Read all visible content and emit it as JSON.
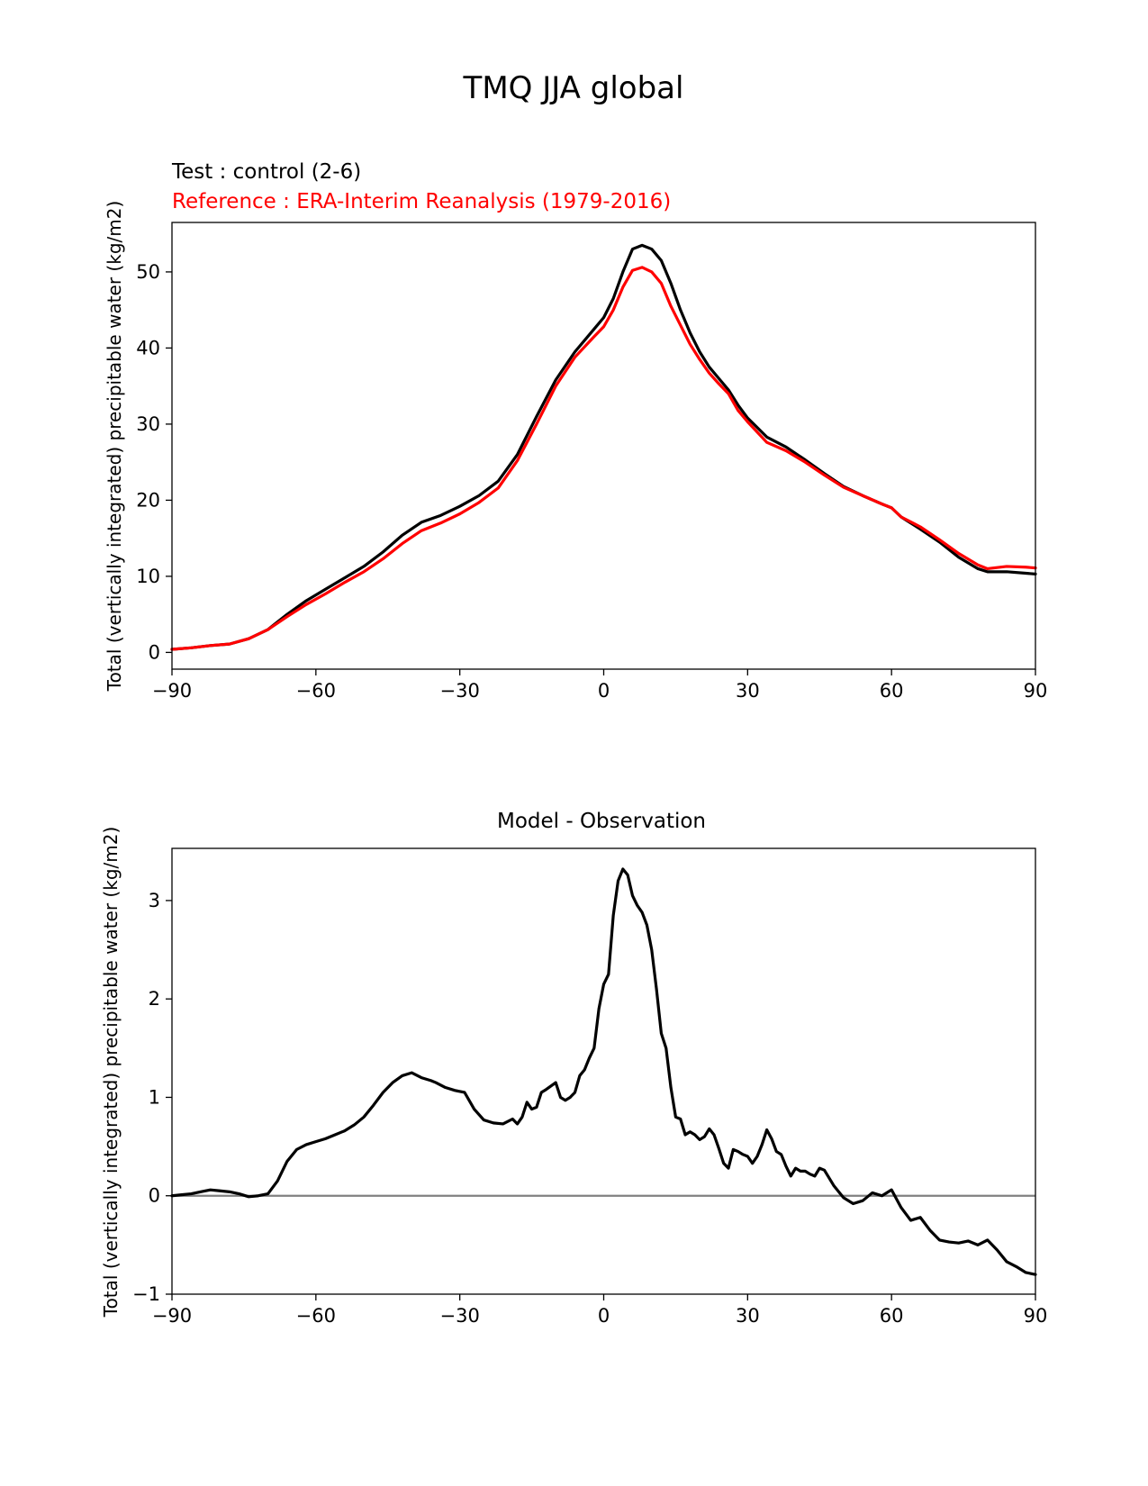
{
  "figure": {
    "title": "TMQ JJA global"
  },
  "chart_data": [
    {
      "type": "line",
      "test_label": "Test : control (2-6)",
      "reference_label": "Reference : ERA-Interim Reanalysis (1979-2016)",
      "title": "",
      "xlabel": "",
      "ylabel": "Total (vertically integrated) precipitable water (kg/m2)",
      "xlim": [
        -90,
        90
      ],
      "ylim": [
        -2.2,
        56.5
      ],
      "xticks": [
        -90,
        -60,
        -30,
        0,
        30,
        60,
        90
      ],
      "xtick_labels": [
        "−90",
        "−60",
        "−30",
        "0",
        "30",
        "60",
        "90"
      ],
      "yticks": [
        0,
        10,
        20,
        30,
        40,
        50
      ],
      "ytick_labels": [
        "0",
        "10",
        "20",
        "30",
        "40",
        "50"
      ],
      "grid": false,
      "series": [
        {
          "name": "test",
          "color": "#000000",
          "x": [
            -90,
            -86,
            -82,
            -78,
            -74,
            -70,
            -66,
            -62,
            -58,
            -54,
            -50,
            -46,
            -42,
            -38,
            -34,
            -30,
            -26,
            -22,
            -18,
            -14,
            -10,
            -6,
            -2,
            0,
            2,
            4,
            6,
            8,
            10,
            12,
            14,
            16,
            18,
            20,
            22,
            24,
            26,
            28,
            30,
            34,
            38,
            42,
            46,
            50,
            54,
            58,
            60,
            62,
            66,
            70,
            74,
            78,
            80,
            84,
            88,
            90
          ],
          "y": [
            0.4,
            0.6,
            0.9,
            1.1,
            1.8,
            3.0,
            5.0,
            6.8,
            8.3,
            9.8,
            11.3,
            13.2,
            15.4,
            17.1,
            18.0,
            19.2,
            20.6,
            22.5,
            26.0,
            31.0,
            35.8,
            39.5,
            42.5,
            44.0,
            46.5,
            50.0,
            53.0,
            53.5,
            53.0,
            51.5,
            48.5,
            45.0,
            42.0,
            39.5,
            37.5,
            36.0,
            34.5,
            32.5,
            30.8,
            28.3,
            27.0,
            25.3,
            23.5,
            21.8,
            20.6,
            19.5,
            19.0,
            17.8,
            16.2,
            14.5,
            12.5,
            11.0,
            10.6,
            10.6,
            10.4,
            10.3
          ]
        },
        {
          "name": "reference",
          "color": "#ff0000",
          "x": [
            -90,
            -86,
            -82,
            -78,
            -74,
            -70,
            -66,
            -62,
            -58,
            -54,
            -50,
            -46,
            -42,
            -38,
            -34,
            -30,
            -26,
            -22,
            -18,
            -14,
            -10,
            -6,
            -2,
            0,
            2,
            4,
            6,
            8,
            10,
            12,
            14,
            16,
            18,
            20,
            22,
            24,
            26,
            28,
            30,
            34,
            38,
            42,
            46,
            50,
            54,
            58,
            60,
            62,
            66,
            70,
            74,
            78,
            80,
            84,
            88,
            90
          ],
          "y": [
            0.4,
            0.6,
            0.9,
            1.1,
            1.8,
            3.0,
            4.7,
            6.3,
            7.7,
            9.2,
            10.6,
            12.3,
            14.3,
            16.0,
            17.0,
            18.2,
            19.7,
            21.6,
            25.2,
            30.0,
            35.0,
            38.8,
            41.5,
            42.8,
            45.0,
            48.0,
            50.2,
            50.6,
            50.0,
            48.5,
            45.5,
            43.0,
            40.5,
            38.5,
            36.7,
            35.3,
            34.0,
            31.8,
            30.3,
            27.6,
            26.5,
            25.0,
            23.3,
            21.7,
            20.6,
            19.5,
            19.0,
            17.8,
            16.5,
            14.8,
            13.0,
            11.5,
            11.0,
            11.3,
            11.2,
            11.1
          ]
        }
      ]
    },
    {
      "type": "line",
      "title": "Model - Observation",
      "xlabel": "",
      "ylabel": "Total (vertically integrated) precipitable water (kg/m2)",
      "xlim": [
        -90,
        90
      ],
      "ylim": [
        -1.0,
        3.53
      ],
      "xticks": [
        -90,
        -60,
        -30,
        0,
        30,
        60,
        90
      ],
      "xtick_labels": [
        "−90",
        "−60",
        "−30",
        "0",
        "30",
        "60",
        "90"
      ],
      "yticks": [
        -1,
        0,
        1,
        2,
        3
      ],
      "ytick_labels": [
        "−1",
        "0",
        "1",
        "2",
        "3"
      ],
      "grid": false,
      "zero_line_color": "#808080",
      "series": [
        {
          "name": "Model - Observation",
          "color": "#000000",
          "x": [
            -90,
            -88,
            -86,
            -84,
            -82,
            -80,
            -78,
            -76,
            -74,
            -72,
            -70,
            -68,
            -66,
            -64,
            -62,
            -60,
            -58,
            -56,
            -54,
            -52,
            -50,
            -48,
            -46,
            -44,
            -42,
            -40,
            -38,
            -36,
            -35,
            -33,
            -31,
            -29,
            -27,
            -25,
            -23,
            -21,
            -19,
            -18,
            -17,
            -16,
            -15,
            -14,
            -13,
            -12,
            -10,
            -9,
            -8,
            -7,
            -6,
            -5,
            -4,
            -3,
            -2,
            -1,
            0,
            1,
            2,
            3,
            4,
            5,
            6,
            7,
            8,
            9,
            10,
            11,
            12,
            13,
            14,
            15,
            16,
            17,
            18,
            19,
            20,
            21,
            22,
            23,
            24,
            25,
            26,
            27,
            28,
            29,
            30,
            31,
            32,
            33,
            34,
            35,
            36,
            37,
            38,
            39,
            40,
            41,
            42,
            43,
            44,
            45,
            46,
            47,
            48,
            49,
            50,
            52,
            54,
            56,
            58,
            60,
            62,
            64,
            66,
            68,
            70,
            72,
            74,
            76,
            78,
            80,
            82,
            84,
            86,
            88,
            90
          ],
          "y": [
            0.0,
            0.01,
            0.02,
            0.04,
            0.06,
            0.05,
            0.04,
            0.02,
            -0.01,
            0.0,
            0.02,
            0.15,
            0.35,
            0.47,
            0.52,
            0.55,
            0.58,
            0.62,
            0.66,
            0.72,
            0.8,
            0.92,
            1.05,
            1.15,
            1.22,
            1.25,
            1.2,
            1.17,
            1.15,
            1.1,
            1.07,
            1.05,
            0.88,
            0.77,
            0.74,
            0.73,
            0.78,
            0.73,
            0.8,
            0.95,
            0.88,
            0.9,
            1.05,
            1.08,
            1.15,
            1.0,
            0.97,
            1.0,
            1.05,
            1.22,
            1.28,
            1.4,
            1.5,
            1.9,
            2.15,
            2.25,
            2.85,
            3.2,
            3.32,
            3.26,
            3.05,
            2.95,
            2.88,
            2.75,
            2.5,
            2.1,
            1.65,
            1.5,
            1.1,
            0.8,
            0.78,
            0.62,
            0.65,
            0.62,
            0.57,
            0.6,
            0.68,
            0.62,
            0.48,
            0.33,
            0.28,
            0.47,
            0.45,
            0.42,
            0.4,
            0.33,
            0.4,
            0.52,
            0.67,
            0.58,
            0.45,
            0.42,
            0.3,
            0.2,
            0.28,
            0.25,
            0.25,
            0.22,
            0.2,
            0.28,
            0.26,
            0.18,
            0.1,
            0.04,
            -0.02,
            -0.08,
            -0.05,
            0.03,
            0.0,
            0.06,
            -0.12,
            -0.25,
            -0.22,
            -0.35,
            -0.45,
            -0.47,
            -0.48,
            -0.46,
            -0.5,
            -0.45,
            -0.55,
            -0.67,
            -0.72,
            -0.78,
            -0.8
          ]
        }
      ]
    }
  ]
}
